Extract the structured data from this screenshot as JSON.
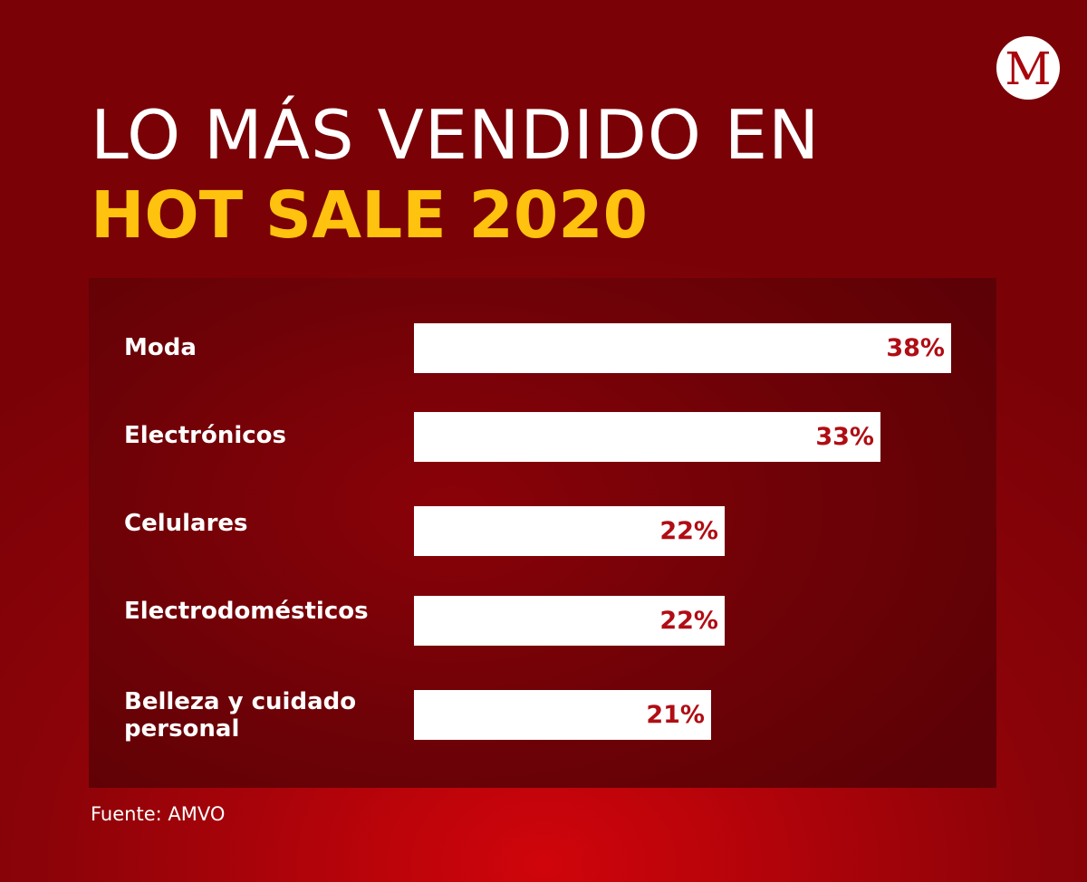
{
  "logo": {
    "letter": "M"
  },
  "header": {
    "line1": "LO MÁS VENDIDO EN",
    "line2": "HOT SALE 2020"
  },
  "chart_data": {
    "type": "bar",
    "orientation": "horizontal",
    "categories": [
      "Moda",
      "Electrónicos",
      "Celulares",
      "Electrodomésticos",
      "Belleza y cuidado personal"
    ],
    "values": [
      38,
      33,
      22,
      22,
      21
    ],
    "value_labels": [
      "38%",
      "33%",
      "22%",
      "22%",
      "21%"
    ],
    "unit": "%",
    "xlim": [
      0,
      38
    ],
    "grid": false,
    "legend": "none",
    "bar_color": "#ffffff",
    "value_label_color": "#b00d14"
  },
  "source": "Fuente: AMVO",
  "colors": {
    "background": "#b2030a",
    "panel": "#6e0207",
    "title_white": "#ffffff",
    "title_yellow": "#ffc20e"
  }
}
